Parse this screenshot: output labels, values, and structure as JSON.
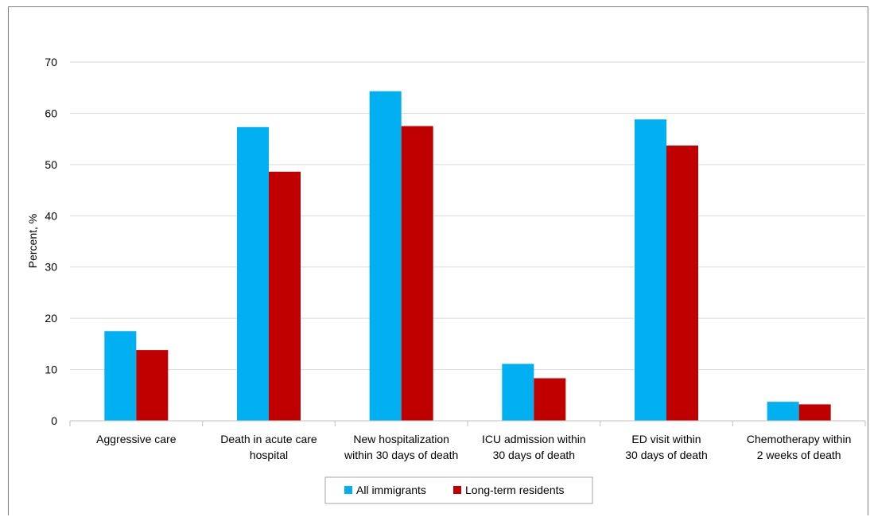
{
  "chart_data": {
    "type": "bar",
    "title": "",
    "ylabel": "Percent, %",
    "xlabel": "",
    "ylim": [
      0,
      70
    ],
    "yticks": [
      0,
      10,
      20,
      30,
      40,
      50,
      60,
      70
    ],
    "grid": true,
    "legend_position": "bottom",
    "categories": [
      [
        "Aggressive care"
      ],
      [
        "Death in acute care",
        "hospital"
      ],
      [
        "New hospitalization",
        "within 30 days of death"
      ],
      [
        "ICU admission within",
        "30 days of death"
      ],
      [
        "ED visit within",
        "30 days of death"
      ],
      [
        "Chemotherapy within",
        "2 weeks of death"
      ]
    ],
    "series": [
      {
        "name": "All immigrants",
        "color": "#00b0f0",
        "values": [
          17.5,
          57.3,
          64.3,
          11.1,
          58.8,
          3.7
        ]
      },
      {
        "name": "Long-term residents",
        "color": "#c00000",
        "values": [
          13.8,
          48.6,
          57.5,
          8.3,
          53.7,
          3.2
        ]
      }
    ]
  }
}
